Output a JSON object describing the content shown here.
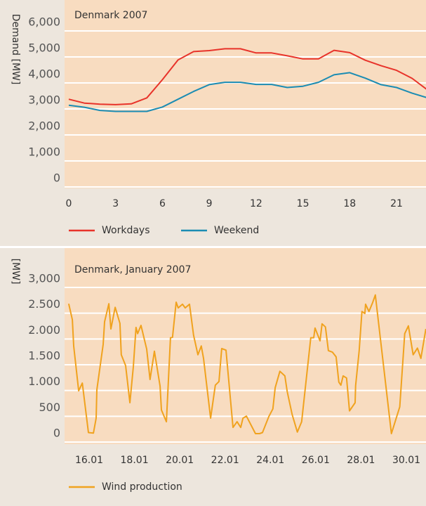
{
  "chart_data": [
    {
      "type": "line",
      "title": "Denmark 2007",
      "ylabel": "Demand [MW]",
      "x": [
        0,
        1,
        2,
        3,
        4,
        5,
        6,
        7,
        8,
        9,
        10,
        11,
        12,
        13,
        14,
        15,
        16,
        17,
        18,
        19,
        20,
        21,
        22,
        23
      ],
      "series": [
        {
          "name": "Workdays",
          "color": "#e8332a",
          "values": [
            3050,
            2900,
            2860,
            2840,
            2870,
            3100,
            3800,
            4560,
            4880,
            4920,
            4990,
            4990,
            4830,
            4830,
            4720,
            4600,
            4600,
            4930,
            4840,
            4550,
            4340,
            4160,
            3850,
            3400
          ]
        },
        {
          "name": "Weekend",
          "color": "#1b8cb3",
          "values": [
            2820,
            2740,
            2620,
            2580,
            2580,
            2580,
            2750,
            3050,
            3350,
            3610,
            3700,
            3700,
            3620,
            3620,
            3500,
            3550,
            3700,
            3990,
            4070,
            3860,
            3610,
            3500,
            3280,
            3100
          ]
        }
      ],
      "xlim": [
        0,
        21
      ],
      "xticks": [
        0,
        3,
        6,
        9,
        12,
        15,
        18,
        21
      ],
      "ylim": [
        0,
        6000
      ],
      "yticks": [
        0,
        {
          "value": 1000,
          "label": "1,000"
        },
        {
          "value": 2000,
          "label": "2,000"
        },
        {
          "value": 3000,
          "label": "3,000"
        },
        {
          "value": 4000,
          "label": "4,000"
        },
        {
          "value": 5000,
          "label": "5,000"
        },
        {
          "value": 6000,
          "label": "6,000"
        }
      ],
      "grid": true
    },
    {
      "type": "line",
      "title": "Denmark, January 2007",
      "ylabel": "[MW]",
      "x": [
        15.1,
        15.26,
        15.32,
        15.54,
        15.7,
        15.97,
        16.19,
        16.31,
        16.34,
        16.62,
        16.68,
        16.87,
        16.96,
        17.15,
        17.36,
        17.42,
        17.61,
        17.8,
        17.95,
        18.07,
        18.14,
        18.29,
        18.54,
        18.69,
        18.88,
        19.13,
        19.19,
        19.41,
        19.59,
        19.68,
        19.84,
        19.93,
        20.12,
        20.24,
        20.43,
        20.61,
        20.8,
        20.95,
        21.05,
        21.36,
        21.57,
        21.73,
        21.85,
        22.04,
        22.35,
        22.53,
        22.69,
        22.79,
        22.94,
        23.34,
        23.52,
        23.65,
        23.93,
        24.11,
        24.21,
        24.42,
        24.64,
        24.74,
        24.96,
        25.19,
        25.38,
        25.78,
        25.91,
        25.97,
        26.19,
        26.28,
        26.43,
        26.56,
        26.74,
        26.9,
        27.02,
        27.11,
        27.21,
        27.36,
        27.49,
        27.74,
        27.76,
        27.92,
        28.04,
        28.17,
        28.2,
        28.35,
        28.51,
        28.63,
        29.34,
        29.71,
        29.93,
        30.09,
        30.3,
        30.49,
        30.64,
        30.86
      ],
      "series": [
        {
          "name": "Wind production",
          "color": "#f0a21e",
          "values": [
            2520,
            2210,
            1700,
            830,
            980,
            20,
            10,
            300,
            850,
            1730,
            2170,
            2520,
            2030,
            2450,
            2140,
            1530,
            1320,
            600,
            1300,
            2060,
            1940,
            2100,
            1640,
            1050,
            1600,
            920,
            460,
            230,
            1860,
            1870,
            2550,
            2440,
            2510,
            2440,
            2510,
            1910,
            1530,
            1700,
            1460,
            300,
            940,
            1010,
            1650,
            1620,
            120,
            230,
            120,
            300,
            340,
            0,
            0,
            20,
            330,
            480,
            890,
            1210,
            1120,
            820,
            370,
            30,
            230,
            1860,
            1860,
            2050,
            1800,
            2130,
            2070,
            1610,
            1580,
            1490,
            1000,
            940,
            1120,
            1080,
            440,
            600,
            930,
            1610,
            2370,
            2330,
            2510,
            2370,
            2540,
            2690,
            0,
            520,
            1940,
            2090,
            1530,
            1660,
            1460,
            2030
          ]
        }
      ],
      "xlim": [
        16,
        30
      ],
      "xticks": [
        {
          "value": 16,
          "label": "16.01"
        },
        {
          "value": 18,
          "label": "18.01"
        },
        {
          "value": 20,
          "label": "20.01"
        },
        {
          "value": 22,
          "label": "22.01"
        },
        {
          "value": 24,
          "label": "24.01"
        },
        {
          "value": 26,
          "label": "26.01"
        },
        {
          "value": 28,
          "label": "28.01"
        },
        {
          "value": 30,
          "label": "30.01"
        }
      ],
      "ylim": [
        0,
        3000
      ],
      "yticks": [
        0,
        500,
        {
          "value": 1000,
          "label": "1.000"
        },
        {
          "value": 1500,
          "label": "1.500"
        },
        {
          "value": 2000,
          "label": "2.000"
        },
        {
          "value": 2500,
          "label": "2.500"
        },
        {
          "value": 3000,
          "label": "3,000"
        }
      ],
      "grid": true
    }
  ]
}
